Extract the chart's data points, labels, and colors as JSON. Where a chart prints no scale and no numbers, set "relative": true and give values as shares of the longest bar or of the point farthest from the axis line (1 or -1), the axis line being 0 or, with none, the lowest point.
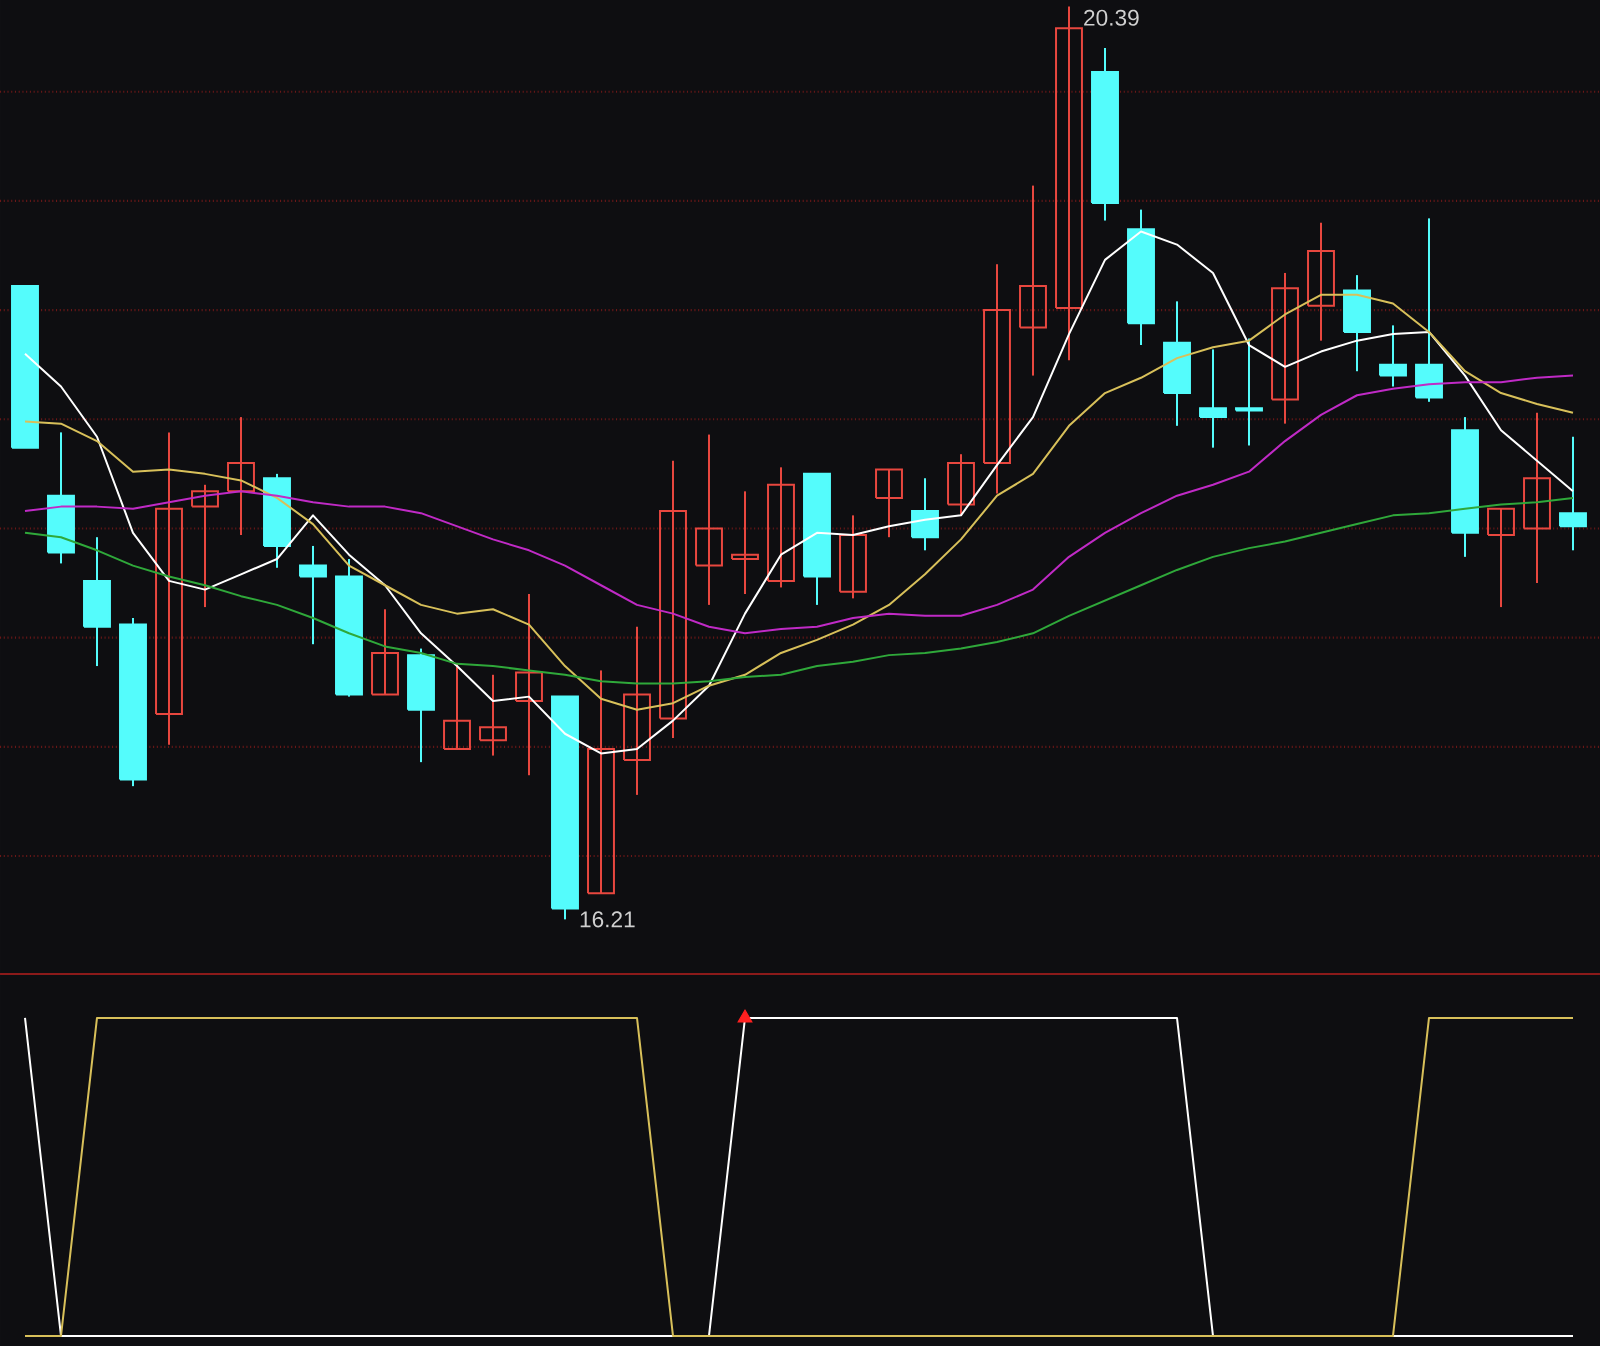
{
  "chart_data": [
    {
      "type": "candlestick",
      "categories": [
        null,
        null,
        null,
        null,
        null,
        null,
        null,
        null,
        null,
        null,
        null,
        null,
        null,
        null,
        null,
        null,
        null,
        null,
        null,
        null,
        null,
        null,
        null,
        null,
        null,
        null,
        null,
        null,
        null,
        null,
        null,
        null,
        null,
        null,
        null,
        null,
        null,
        null,
        null,
        null,
        null,
        null,
        null,
        null
      ],
      "ohlc": [
        [
          19.11,
          19.11,
          18.37,
          18.37
        ],
        [
          18.15,
          18.44,
          17.84,
          17.89
        ],
        [
          17.76,
          17.96,
          17.37,
          17.55
        ],
        [
          17.56,
          17.59,
          16.82,
          16.85
        ],
        [
          17.15,
          18.44,
          17.01,
          18.09
        ],
        [
          18.1,
          18.2,
          17.64,
          18.17
        ],
        [
          18.17,
          18.51,
          17.97,
          18.3
        ],
        [
          18.23,
          18.25,
          17.82,
          17.92
        ],
        [
          17.83,
          17.92,
          17.47,
          17.78
        ],
        [
          17.78,
          17.86,
          17.23,
          17.24
        ],
        [
          17.24,
          17.63,
          17.24,
          17.43
        ],
        [
          17.42,
          17.45,
          16.93,
          17.17
        ],
        [
          16.99,
          17.38,
          16.99,
          17.12
        ],
        [
          17.03,
          17.33,
          16.96,
          17.09
        ],
        [
          17.21,
          17.7,
          16.87,
          17.34
        ],
        [
          17.23,
          17.23,
          16.21,
          16.26
        ],
        [
          16.33,
          17.35,
          16.33,
          16.99
        ],
        [
          16.94,
          17.55,
          16.78,
          17.24
        ],
        [
          17.13,
          18.31,
          17.04,
          18.08
        ],
        [
          17.83,
          18.43,
          17.65,
          18.0
        ],
        [
          17.86,
          18.17,
          17.7,
          17.88
        ],
        [
          17.76,
          18.28,
          17.73,
          18.2
        ],
        [
          18.25,
          18.25,
          17.65,
          17.78
        ],
        [
          17.71,
          18.06,
          17.68,
          17.97
        ],
        [
          18.14,
          18.27,
          17.96,
          18.27
        ],
        [
          18.08,
          18.23,
          17.9,
          17.96
        ],
        [
          18.11,
          18.34,
          18.06,
          18.3
        ],
        [
          18.3,
          19.21,
          18.16,
          19.0
        ],
        [
          18.92,
          19.57,
          18.7,
          19.11
        ],
        [
          19.01,
          20.39,
          18.77,
          20.29
        ],
        [
          20.09,
          20.2,
          19.41,
          19.49
        ],
        [
          19.37,
          19.46,
          18.84,
          18.94
        ],
        [
          18.85,
          19.04,
          18.47,
          18.62
        ],
        [
          18.55,
          18.82,
          18.37,
          18.51
        ],
        [
          18.55,
          18.87,
          18.38,
          18.54
        ],
        [
          18.59,
          19.17,
          18.48,
          19.1
        ],
        [
          19.02,
          19.4,
          18.86,
          19.27
        ],
        [
          19.09,
          19.16,
          18.72,
          18.9
        ],
        [
          18.75,
          18.93,
          18.65,
          18.7
        ],
        [
          18.75,
          19.42,
          18.58,
          18.6
        ],
        [
          18.45,
          18.51,
          17.87,
          17.98
        ],
        [
          17.97,
          18.09,
          17.64,
          18.09
        ],
        [
          18.0,
          18.53,
          17.75,
          18.23
        ],
        [
          18.07,
          18.42,
          17.9,
          18.01
        ]
      ],
      "colors": [
        "#54fcfc",
        "#54fcfc",
        "#54fcfc",
        "#54fcfc",
        "#e8473f",
        "#e8473f",
        "#e8473f",
        "#54fcfc",
        "#54fcfc",
        "#54fcfc",
        "#e8473f",
        "#54fcfc",
        "#e8473f",
        "#e8473f",
        "#e8473f",
        "#54fcfc",
        "#e8473f",
        "#e8473f",
        "#e8473f",
        "#e8473f",
        "#e8473f",
        "#e8473f",
        "#54fcfc",
        "#e8473f",
        "#e8473f",
        "#54fcfc",
        "#e8473f",
        "#e8473f",
        "#e8473f",
        "#e8473f",
        "#54fcfc",
        "#54fcfc",
        "#54fcfc",
        "#54fcfc",
        "#54fcfc",
        "#e8473f",
        "#e8473f",
        "#54fcfc",
        "#54fcfc",
        "#54fcfc",
        "#54fcfc",
        "#e8473f",
        "#e8473f",
        "#54fcfc"
      ],
      "series": [
        {
          "type": "line",
          "color": "#ffffff",
          "values": [
            18.8,
            18.65,
            18.42,
            17.98,
            17.76,
            17.72,
            17.79,
            17.86,
            18.06,
            17.88,
            17.74,
            17.52,
            17.37,
            17.21,
            17.23,
            17.06,
            16.97,
            16.99,
            17.12,
            17.28,
            17.61,
            17.88,
            17.98,
            17.97,
            18.01,
            18.04,
            18.06,
            18.29,
            18.51,
            18.89,
            19.23,
            19.36,
            19.3,
            19.17,
            18.84,
            18.74,
            18.81,
            18.86,
            18.89,
            18.9,
            18.7,
            18.45,
            18.31,
            18.17
          ]
        },
        {
          "type": "line",
          "color": "#d8c05a",
          "values": [
            18.49,
            18.48,
            18.4,
            18.26,
            18.27,
            18.25,
            18.22,
            18.14,
            18.02,
            17.83,
            17.74,
            17.65,
            17.61,
            17.63,
            17.56,
            17.37,
            17.22,
            17.17,
            17.2,
            17.28,
            17.33,
            17.43,
            17.49,
            17.56,
            17.65,
            17.79,
            17.95,
            18.15,
            18.25,
            18.47,
            18.62,
            18.69,
            18.78,
            18.83,
            18.86,
            18.98,
            19.07,
            19.07,
            19.03,
            18.9,
            18.72,
            18.62,
            18.57,
            18.53
          ]
        },
        {
          "type": "line",
          "color": "#c02ac6",
          "values": [
            18.08,
            18.1,
            18.1,
            18.09,
            18.12,
            18.15,
            18.17,
            18.15,
            18.12,
            18.1,
            18.1,
            18.07,
            18.01,
            17.95,
            17.9,
            17.83,
            17.74,
            17.65,
            17.61,
            17.55,
            17.52,
            17.54,
            17.55,
            17.59,
            17.61,
            17.6,
            17.6,
            17.65,
            17.72,
            17.87,
            17.98,
            18.07,
            18.15,
            18.2,
            18.26,
            18.4,
            18.52,
            18.61,
            18.64,
            18.66,
            18.67,
            18.67,
            18.69,
            18.7
          ]
        },
        {
          "type": "line",
          "color": "#2fa83a",
          "values": [
            17.98,
            17.96,
            17.9,
            17.83,
            17.78,
            17.74,
            17.69,
            17.65,
            17.59,
            17.52,
            17.46,
            17.43,
            17.38,
            17.37,
            17.35,
            17.33,
            17.3,
            17.29,
            17.29,
            17.3,
            17.32,
            17.33,
            17.37,
            17.39,
            17.42,
            17.43,
            17.45,
            17.48,
            17.52,
            17.6,
            17.67,
            17.74,
            17.81,
            17.87,
            17.91,
            17.94,
            17.98,
            18.02,
            18.06,
            18.07,
            18.09,
            18.11,
            18.12,
            18.14
          ]
        }
      ],
      "annotations": [
        "20.39",
        "16.21"
      ],
      "ylim": [
        15.96,
        20.42
      ],
      "yticks": [
        {
          "value": 16.5,
          "label": null
        },
        {
          "value": 17,
          "label": null
        },
        {
          "value": 17.5,
          "label": null
        },
        {
          "value": 18,
          "label": null
        },
        {
          "value": 18.5,
          "label": null
        },
        {
          "value": 19,
          "label": null
        },
        {
          "value": 19.5,
          "label": null
        },
        {
          "value": 20,
          "label": null
        }
      ],
      "grid": "y"
    },
    {
      "type": "line",
      "relative": true,
      "categories": [
        null,
        null,
        null,
        null,
        null,
        null,
        null,
        null,
        null,
        null,
        null,
        null,
        null,
        null,
        null,
        null,
        null,
        null,
        null,
        null,
        null,
        null,
        null,
        null,
        null,
        null,
        null,
        null,
        null,
        null,
        null,
        null,
        null,
        null,
        null,
        null,
        null,
        null,
        null,
        null,
        null,
        null,
        null,
        null
      ],
      "series": [
        {
          "color": "#ffffff",
          "values": [
            1,
            0,
            0,
            0,
            0,
            0,
            0,
            0,
            0,
            0,
            0,
            0,
            0,
            0,
            0,
            0,
            0,
            0,
            0,
            0,
            1,
            1,
            1,
            1,
            1,
            1,
            1,
            1,
            1,
            1,
            1,
            1,
            1,
            0,
            0,
            0,
            0,
            0,
            0,
            0,
            0,
            0,
            0,
            0
          ]
        },
        {
          "color": "#d8c05a",
          "values": [
            0,
            0,
            1,
            1,
            1,
            1,
            1,
            1,
            1,
            1,
            1,
            1,
            1,
            1,
            1,
            1,
            1,
            1,
            0,
            0,
            0,
            0,
            0,
            0,
            0,
            0,
            0,
            0,
            0,
            0,
            0,
            0,
            0,
            0,
            0,
            0,
            0,
            0,
            0,
            1,
            1,
            1,
            1,
            1
          ]
        },
        {
          "type": "scatter",
          "marker": "triangle",
          "color": "#ff2020",
          "values": [
            null,
            null,
            null,
            null,
            null,
            null,
            null,
            null,
            null,
            null,
            null,
            null,
            null,
            null,
            null,
            null,
            null,
            null,
            null,
            null,
            1,
            null,
            null,
            null,
            null,
            null,
            null,
            null,
            null,
            null,
            null,
            null,
            null,
            null,
            null,
            null,
            null,
            null,
            null,
            null,
            null,
            null,
            null,
            null
          ]
        }
      ]
    }
  ]
}
